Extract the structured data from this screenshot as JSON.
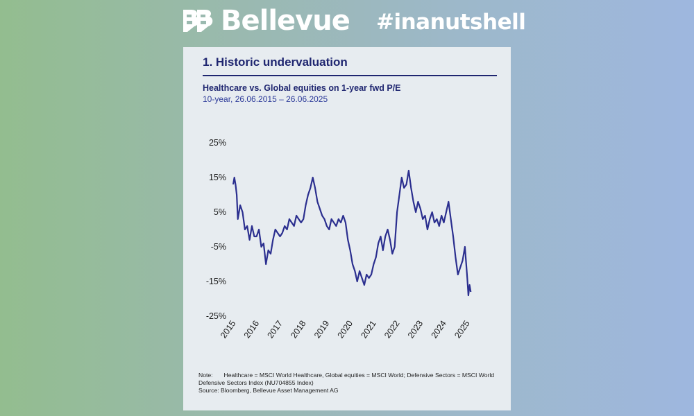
{
  "header": {
    "brand_name": "Bellevue",
    "hashtag": "#inanutshell"
  },
  "card": {
    "title": "1. Historic undervaluation",
    "subtitle": "Healthcare vs. Global equities on 1-year fwd P/E",
    "date_range": "10-year, 26.06.2015 – 26.06.2025",
    "note_label": "Note:",
    "note_text": "Healthcare = MSCI World Healthcare, Global equities = MSCI World; Defensive Sectors = MSCI World Defensive Sectors Index (NU704855 Index)",
    "source": "Source: Bloomberg, Bellevue Asset Management AG"
  },
  "colors": {
    "line": "#2b2f8f",
    "title": "#1f2670",
    "card_bg": "#e7ecf0"
  },
  "chart_data": {
    "type": "line",
    "title": "Healthcare vs. Global equities on 1-year fwd P/E",
    "xlabel": "",
    "ylabel": "",
    "ylim": [
      -25,
      25
    ],
    "xlim": [
      2015,
      2025.2
    ],
    "y_ticks": [
      "25%",
      "15%",
      "5%",
      "-5%",
      "-15%",
      "-25%"
    ],
    "y_tick_values": [
      25,
      15,
      5,
      -5,
      -15,
      -25
    ],
    "x_ticks": [
      "2015",
      "2016",
      "2017",
      "2018",
      "2019",
      "2020",
      "2021",
      "2022",
      "2023",
      "2024",
      "2025"
    ],
    "x_tick_values": [
      2015,
      2016,
      2017,
      2018,
      2019,
      2020,
      2021,
      2022,
      2023,
      2024,
      2025
    ],
    "grid": false,
    "legend": "none",
    "series": [
      {
        "x": [
          2015.0,
          2015.05,
          2015.1,
          2015.15,
          2015.2,
          2015.3,
          2015.4,
          2015.5,
          2015.6,
          2015.7,
          2015.8,
          2015.9,
          2016.0,
          2016.1,
          2016.2,
          2016.3,
          2016.4,
          2016.5,
          2016.6,
          2016.7,
          2016.8,
          2016.9,
          2017.0,
          2017.1,
          2017.2,
          2017.3,
          2017.4,
          2017.5,
          2017.6,
          2017.7,
          2017.8,
          2017.9,
          2018.0,
          2018.1,
          2018.2,
          2018.3,
          2018.4,
          2018.5,
          2018.6,
          2018.7,
          2018.8,
          2018.9,
          2019.0,
          2019.1,
          2019.2,
          2019.3,
          2019.4,
          2019.5,
          2019.6,
          2019.7,
          2019.8,
          2019.9,
          2020.0,
          2020.1,
          2020.2,
          2020.3,
          2020.4,
          2020.5,
          2020.6,
          2020.7,
          2020.8,
          2020.9,
          2021.0,
          2021.1,
          2021.2,
          2021.3,
          2021.4,
          2021.5,
          2021.6,
          2021.7,
          2021.8,
          2021.9,
          2022.0,
          2022.1,
          2022.2,
          2022.3,
          2022.4,
          2022.5,
          2022.6,
          2022.7,
          2022.8,
          2022.9,
          2023.0,
          2023.1,
          2023.2,
          2023.3,
          2023.4,
          2023.5,
          2023.6,
          2023.7,
          2023.8,
          2023.9,
          2024.0,
          2024.1,
          2024.2,
          2024.3,
          2024.4,
          2024.5,
          2024.6,
          2024.7,
          2024.8,
          2024.9,
          2025.0,
          2025.05,
          2025.1,
          2025.15
        ],
        "values": [
          13,
          15,
          13,
          10,
          3,
          7,
          5,
          0,
          1,
          -3,
          1,
          -2,
          -2,
          0,
          -5,
          -4,
          -10,
          -6,
          -7,
          -3,
          0,
          -1,
          -2,
          -1,
          1,
          0,
          3,
          2,
          1,
          4,
          3,
          2,
          3,
          7,
          10,
          12,
          15,
          12,
          8,
          6,
          4,
          3,
          1,
          0,
          3,
          2,
          1,
          3,
          2,
          4,
          2,
          -3,
          -6,
          -10,
          -12,
          -15,
          -12,
          -14,
          -16,
          -13,
          -14,
          -13,
          -10,
          -8,
          -4,
          -2,
          -6,
          -2,
          0,
          -3,
          -7,
          -5,
          5,
          10,
          15,
          12,
          13,
          17,
          12,
          8,
          5,
          8,
          6,
          3,
          4,
          0,
          3,
          5,
          2,
          3,
          1,
          4,
          2,
          5,
          8,
          3,
          -2,
          -8,
          -13,
          -11,
          -9,
          -5,
          -14,
          -19,
          -16,
          -18
        ]
      }
    ]
  }
}
